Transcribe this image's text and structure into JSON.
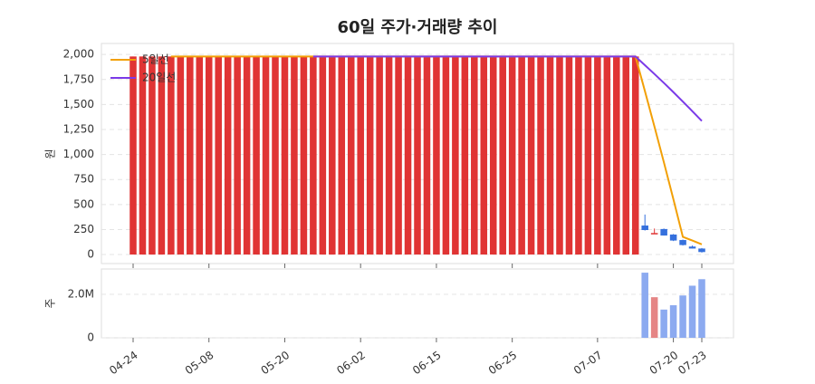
{
  "chart_data": {
    "type": "candlestick",
    "title": "60일 주가·거래량 추이",
    "y_label": "원",
    "volume_label": "주",
    "legend": "upper left",
    "grid": true,
    "up_color": "#e03434",
    "down_color": "#3570dd",
    "volume_up_color": "#e58585",
    "volume_down_color": "#8caaf0",
    "categories": [
      "04-24",
      null,
      null,
      null,
      null,
      null,
      null,
      null,
      "05-08",
      null,
      null,
      null,
      null,
      null,
      null,
      null,
      "05-20",
      null,
      null,
      null,
      null,
      null,
      null,
      null,
      "06-02",
      null,
      null,
      null,
      null,
      null,
      null,
      null,
      "06-15",
      null,
      null,
      null,
      null,
      null,
      null,
      null,
      "06-25",
      null,
      null,
      null,
      null,
      null,
      null,
      null,
      null,
      "07-07",
      null,
      null,
      null,
      null,
      null,
      null,
      null,
      "07-20",
      null,
      null,
      "07-23"
    ],
    "ylim": [
      -90,
      2110
    ],
    "yticks": [
      0,
      250,
      500,
      750,
      {
        "value": 1000,
        "label": "1,000"
      },
      {
        "value": 1250,
        "label": "1,250"
      },
      {
        "value": 1500,
        "label": "1,500"
      },
      {
        "value": 1750,
        "label": "1,750"
      },
      {
        "value": 2000,
        "label": "2,000"
      }
    ],
    "ohlc": {
      "open": [
        0,
        0,
        0,
        0,
        0,
        0,
        0,
        0,
        0,
        0,
        0,
        0,
        0,
        0,
        0,
        0,
        0,
        0,
        0,
        0,
        0,
        0,
        0,
        0,
        0,
        0,
        0,
        0,
        0,
        0,
        0,
        0,
        0,
        0,
        0,
        0,
        0,
        0,
        0,
        0,
        0,
        0,
        0,
        0,
        0,
        0,
        0,
        0,
        0,
        0,
        0,
        0,
        0,
        0,
        290,
        210,
        255,
        200,
        145,
        80,
        60
      ],
      "high": [
        1980,
        1980,
        1980,
        1980,
        1980,
        1980,
        1980,
        1980,
        1980,
        1980,
        1980,
        1980,
        1980,
        1980,
        1980,
        1980,
        1980,
        1980,
        1980,
        1980,
        1980,
        1980,
        1980,
        1980,
        1980,
        1980,
        1980,
        1980,
        1980,
        1980,
        1980,
        1980,
        1980,
        1980,
        1980,
        1980,
        1980,
        1980,
        1980,
        1980,
        1980,
        1980,
        1980,
        1980,
        1980,
        1980,
        1980,
        1980,
        1980,
        1980,
        1980,
        1980,
        1980,
        1980,
        400,
        260,
        260,
        205,
        150,
        90,
        65
      ],
      "low": [
        0,
        0,
        0,
        0,
        0,
        0,
        0,
        0,
        0,
        0,
        0,
        0,
        0,
        0,
        0,
        0,
        0,
        0,
        0,
        0,
        0,
        0,
        0,
        0,
        0,
        0,
        0,
        0,
        0,
        0,
        0,
        0,
        0,
        0,
        0,
        0,
        0,
        0,
        0,
        0,
        0,
        0,
        0,
        0,
        0,
        0,
        0,
        0,
        0,
        0,
        0,
        0,
        0,
        0,
        240,
        205,
        190,
        135,
        90,
        60,
        20
      ],
      "close": [
        1980,
        1980,
        1980,
        1980,
        1980,
        1980,
        1980,
        1980,
        1980,
        1980,
        1980,
        1980,
        1980,
        1980,
        1980,
        1980,
        1980,
        1980,
        1980,
        1980,
        1980,
        1980,
        1980,
        1980,
        1980,
        1980,
        1980,
        1980,
        1980,
        1980,
        1980,
        1980,
        1980,
        1980,
        1980,
        1980,
        1980,
        1980,
        1980,
        1980,
        1980,
        1980,
        1980,
        1980,
        1980,
        1980,
        1980,
        1980,
        1980,
        1980,
        1980,
        1980,
        1980,
        1980,
        245,
        215,
        190,
        140,
        95,
        60,
        25
      ]
    },
    "series": [
      {
        "name": "5일선",
        "color": "#f2a007",
        "values": [
          null,
          null,
          null,
          null,
          1980,
          1980,
          1980,
          1980,
          1980,
          1980,
          1980,
          1980,
          1980,
          1980,
          1980,
          1980,
          1980,
          1980,
          1980,
          1980,
          1980,
          1980,
          1980,
          1980,
          1980,
          1980,
          1980,
          1980,
          1980,
          1980,
          1980,
          1980,
          1980,
          1980,
          1980,
          1980,
          1980,
          1980,
          1980,
          1980,
          1980,
          1980,
          1980,
          1980,
          1980,
          1980,
          1980,
          1980,
          1980,
          1980,
          1980,
          1980,
          1980,
          1980,
          1633,
          1280,
          922,
          554,
          177,
          140,
          102
        ]
      },
      {
        "name": "20일선",
        "color": "#7b3ae8",
        "values": [
          null,
          null,
          null,
          null,
          null,
          null,
          null,
          null,
          null,
          null,
          null,
          null,
          null,
          null,
          null,
          null,
          null,
          null,
          null,
          1980,
          1980,
          1980,
          1980,
          1980,
          1980,
          1980,
          1980,
          1980,
          1980,
          1980,
          1980,
          1980,
          1980,
          1980,
          1980,
          1980,
          1980,
          1980,
          1980,
          1980,
          1980,
          1980,
          1980,
          1980,
          1980,
          1980,
          1980,
          1980,
          1980,
          1980,
          1980,
          1980,
          1980,
          1980,
          1893,
          1805,
          1715.5,
          1623.5,
          1529,
          1433,
          1335.5
        ]
      }
    ],
    "volume": {
      "values": [
        0,
        0,
        0,
        0,
        0,
        0,
        0,
        0,
        0,
        0,
        0,
        0,
        0,
        0,
        0,
        0,
        0,
        0,
        0,
        0,
        0,
        0,
        0,
        0,
        0,
        0,
        0,
        0,
        0,
        0,
        0,
        0,
        0,
        0,
        0,
        0,
        0,
        0,
        0,
        0,
        0,
        0,
        0,
        0,
        0,
        0,
        0,
        0,
        0,
        0,
        0,
        0,
        0,
        0,
        3000000,
        1870000,
        1300000,
        1500000,
        1950000,
        2400000,
        2700000
      ],
      "ylim": [
        0,
        3170000
      ],
      "yticks": [
        0,
        {
          "value": 2000000,
          "label": "2.0M"
        }
      ]
    }
  }
}
